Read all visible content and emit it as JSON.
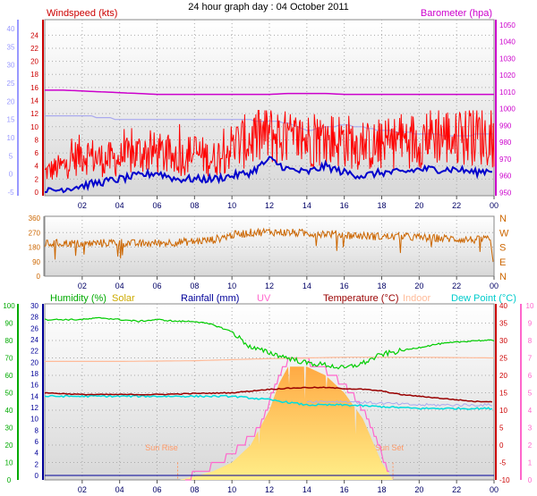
{
  "title": "24 hour graph day : 04 October 2011",
  "chart_data": [
    {
      "type": "line",
      "panel": "wind-pressure",
      "x_ticks": [
        "02",
        "04",
        "06",
        "08",
        "10",
        "12",
        "14",
        "16",
        "18",
        "20",
        "22",
        "00"
      ],
      "left_axis_outer": {
        "color": "#9999ff",
        "ticks": [
          -5,
          0,
          5,
          10,
          15,
          20,
          25,
          30,
          35,
          40
        ]
      },
      "left_axis": {
        "label": "Windspeed (kts)",
        "color": "#cc0000",
        "ticks": [
          0,
          2,
          4,
          6,
          8,
          10,
          12,
          14,
          16,
          18,
          20,
          22,
          24
        ],
        "ylim": [
          0,
          25
        ]
      },
      "right_axis": {
        "label": "Barometer (hpa)",
        "color": "#cc00cc",
        "ticks": [
          950,
          960,
          970,
          980,
          990,
          1000,
          1010,
          1020,
          1030,
          1040,
          1050
        ],
        "ylim": [
          948,
          1052
        ]
      },
      "series": [
        {
          "name": "Windspeed (kts)",
          "color": "#ff0000",
          "axis": "left",
          "x": [
            0,
            1,
            2,
            3,
            4,
            5,
            6,
            7,
            8,
            9,
            10,
            11,
            12,
            13,
            14,
            15,
            16,
            17,
            18,
            19,
            20,
            21,
            22,
            23,
            24
          ],
          "values": [
            3,
            4,
            6,
            5,
            5,
            6,
            6,
            5,
            6,
            5,
            7,
            8,
            9,
            8,
            8,
            8,
            8,
            7,
            7,
            8,
            8,
            9,
            8,
            9,
            8
          ]
        },
        {
          "name": "Wind gust",
          "color": "#0000cc",
          "axis": "left",
          "x": [
            0,
            1,
            2,
            3,
            4,
            5,
            6,
            7,
            8,
            9,
            10,
            11,
            12,
            13,
            14,
            15,
            16,
            17,
            18,
            19,
            20,
            21,
            22,
            23,
            24
          ],
          "values": [
            0,
            0.5,
            1,
            1.5,
            2,
            2.5,
            3,
            2,
            2,
            2,
            2.5,
            3,
            5,
            3.5,
            3,
            4,
            3,
            2.5,
            3,
            3,
            3.5,
            3.5,
            3.5,
            3,
            3.5
          ]
        },
        {
          "name": "Barometer (hpa)",
          "color": "#cc00cc",
          "axis": "right",
          "x": [
            0,
            1,
            2,
            3,
            4,
            5,
            6,
            7,
            8,
            9,
            10,
            11,
            12,
            13,
            14,
            15,
            16,
            17,
            18,
            19,
            20,
            21,
            22,
            23,
            24
          ],
          "values": [
            1011,
            1011,
            1010.5,
            1010,
            1009.5,
            1009,
            1008.5,
            1008.5,
            1008.5,
            1008.5,
            1008.5,
            1008.5,
            1008.5,
            1009,
            1009,
            1009,
            1008.5,
            1008.5,
            1008.5,
            1008.5,
            1008.5,
            1008.5,
            1008.5,
            1008.5,
            1008.5
          ]
        },
        {
          "name": "Wind chill",
          "color": "#aaaaee",
          "axis": "outer",
          "x": [
            0,
            2,
            4,
            6,
            8,
            10,
            12,
            13,
            14,
            16,
            18,
            20,
            22,
            24
          ],
          "values": [
            16,
            16,
            15,
            15,
            15,
            15,
            14.5,
            14,
            12,
            13.5,
            12,
            11,
            10.5,
            11
          ]
        }
      ]
    },
    {
      "type": "line",
      "panel": "wind-direction",
      "x_ticks": [
        "02",
        "04",
        "06",
        "08",
        "10",
        "12",
        "14",
        "16",
        "18",
        "20",
        "22",
        "00"
      ],
      "left_axis": {
        "color": "#cc6600",
        "ticks": [
          0,
          90,
          180,
          270,
          360
        ],
        "ylim": [
          0,
          360
        ]
      },
      "right_axis": {
        "color": "#cc6600",
        "ticks": [
          "N",
          "E",
          "S",
          "W",
          "N"
        ]
      },
      "series": [
        {
          "name": "Wind direction",
          "color": "#cc6600",
          "x": [
            0,
            1,
            2,
            3,
            4,
            5,
            6,
            7,
            8,
            9,
            10,
            11,
            12,
            13,
            14,
            15,
            16,
            17,
            18,
            19,
            20,
            21,
            22,
            23,
            24
          ],
          "values": [
            200,
            205,
            200,
            205,
            210,
            200,
            205,
            210,
            215,
            225,
            255,
            270,
            275,
            270,
            265,
            265,
            255,
            250,
            245,
            245,
            240,
            235,
            230,
            225,
            225
          ]
        }
      ]
    },
    {
      "type": "line",
      "panel": "temperature-humidity",
      "x_ticks": [
        "02",
        "04",
        "06",
        "08",
        "10",
        "12",
        "14",
        "16",
        "18",
        "20",
        "22",
        "00"
      ],
      "legend": [
        {
          "label": "Humidity (%)",
          "color": "#00aa00"
        },
        {
          "label": "Solar",
          "color": "#ccaa00"
        },
        {
          "label": "Rainfall (mm)",
          "color": "#000099"
        },
        {
          "label": "UV",
          "color": "#ff66cc"
        },
        {
          "label": "Temperature (°C)",
          "color": "#990000"
        },
        {
          "label": "Indoor",
          "color": "#ffbb99"
        },
        {
          "label": "Dew Point (°C)",
          "color": "#00cccc"
        }
      ],
      "axis_humidity": {
        "color": "#00aa00",
        "ticks": [
          0,
          10,
          20,
          30,
          40,
          50,
          60,
          70,
          80,
          90,
          100
        ],
        "ylim": [
          0,
          100
        ]
      },
      "axis_rain": {
        "color": "#000099",
        "ticks": [
          0,
          2,
          4,
          6,
          8,
          10,
          12,
          14,
          16,
          18,
          20,
          22,
          24,
          26,
          28,
          30
        ]
      },
      "axis_temp": {
        "color": "#cc0000",
        "ticks": [
          -10,
          -5,
          0,
          5,
          10,
          15,
          20,
          25,
          30,
          35,
          40
        ],
        "ylim": [
          -10,
          40
        ]
      },
      "axis_uv": {
        "color": "#ff66cc",
        "ticks": [
          0,
          1,
          2,
          3,
          4,
          5,
          6,
          7,
          8,
          9,
          10
        ]
      },
      "annotations": [
        "Sun Rise",
        "Sun Set"
      ],
      "sunrise_x": 7.1,
      "sunset_x": 18.6,
      "series": [
        {
          "name": "Humidity (%)",
          "color": "#00cc00",
          "axis": "humidity",
          "x": [
            0,
            2,
            3,
            4,
            5,
            6,
            7,
            8,
            9,
            10,
            11,
            12,
            13,
            14,
            15,
            16,
            17,
            18,
            19,
            20,
            21,
            22,
            23,
            24
          ],
          "values": [
            92,
            92,
            93,
            92,
            91,
            92,
            91,
            91,
            89,
            85,
            76,
            73,
            70,
            67,
            66,
            64,
            67,
            72,
            74,
            76,
            78,
            79,
            80,
            80
          ]
        },
        {
          "name": "Indoor",
          "color": "#ffbb99",
          "axis": "temp",
          "x": [
            0,
            4,
            8,
            12,
            16,
            20,
            24
          ],
          "values": [
            24,
            24,
            24.2,
            24.8,
            25.2,
            25.2,
            25
          ]
        },
        {
          "name": "Temperature (°C)",
          "color": "#990000",
          "axis": "temp",
          "x": [
            0,
            2,
            4,
            6,
            8,
            10,
            12,
            13,
            14,
            15,
            16,
            17,
            18,
            19,
            20,
            21,
            22,
            23,
            24
          ],
          "values": [
            15,
            14.5,
            14.5,
            14.5,
            14.8,
            15,
            16,
            16.3,
            16.5,
            16.5,
            16.2,
            16,
            15.5,
            14.5,
            14,
            13.5,
            13,
            12.5,
            12.5
          ]
        },
        {
          "name": "Dew Point (°C)",
          "color": "#00dddd",
          "axis": "temp",
          "x": [
            0,
            2,
            4,
            6,
            8,
            10,
            11,
            12,
            14,
            16,
            18,
            20,
            22,
            24
          ],
          "values": [
            14,
            14,
            14,
            14,
            14,
            14,
            13.5,
            13,
            11.5,
            11.5,
            11,
            10.5,
            10.5,
            10.5
          ]
        },
        {
          "name": "Solar",
          "color": "#ffcc66",
          "axis": "uv",
          "x": [
            7.2,
            8,
            9,
            10,
            11,
            11.5,
            12,
            12.5,
            13,
            14,
            15,
            16,
            17,
            18,
            18.6
          ],
          "values": [
            0,
            0.2,
            0.5,
            1,
            2,
            3,
            4,
            5.5,
            6.5,
            6.5,
            6,
            5,
            3.5,
            1,
            0
          ]
        },
        {
          "name": "UV",
          "color": "#ff66cc",
          "axis": "uv",
          "x": [
            7.5,
            8,
            9,
            10,
            11,
            11.5,
            12,
            12.5,
            13,
            14,
            15,
            16,
            17,
            18,
            18.5
          ],
          "values": [
            0,
            0.4,
            0.8,
            1.5,
            2.5,
            3,
            4.5,
            6,
            6.8,
            6.8,
            6.3,
            5.5,
            4,
            1.5,
            0
          ]
        },
        {
          "name": "Rainfall (mm)",
          "color": "#000099",
          "axis": "rain",
          "x": [
            0,
            24
          ],
          "values": [
            0,
            0
          ]
        }
      ]
    }
  ]
}
